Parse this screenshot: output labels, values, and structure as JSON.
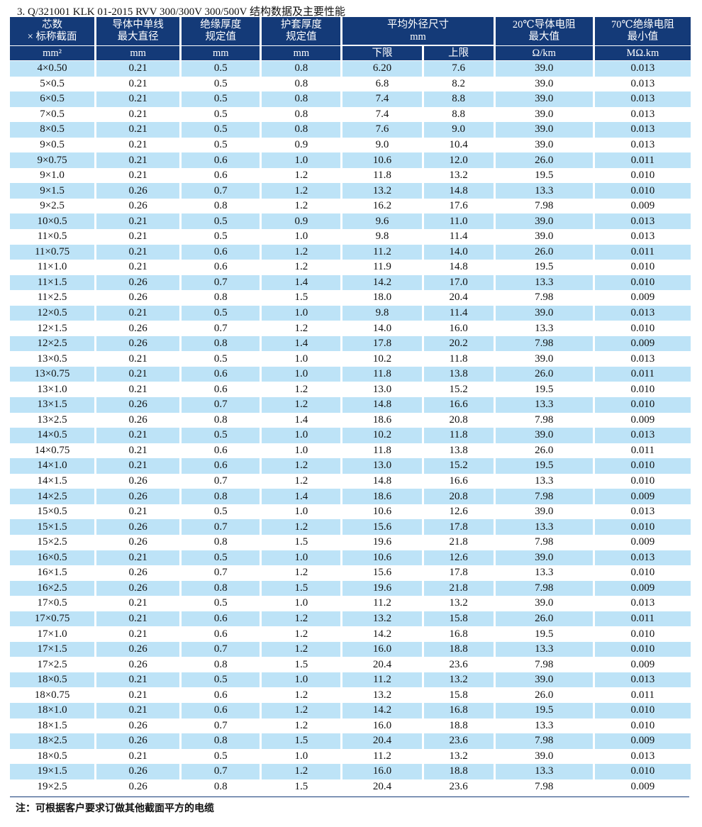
{
  "title": "3. Q/321001 KLK 01-2015 RVV 300/300V 300/500V 结构数据及主要性能",
  "header": {
    "col1": [
      "芯数",
      "× 标称截面",
      "mm²"
    ],
    "col2": [
      "导体中单线",
      "最大直径",
      "mm"
    ],
    "col3": [
      "绝缘厚度",
      "规定值",
      "mm"
    ],
    "col4": [
      "护套厚度",
      "规定值",
      "mm"
    ],
    "col5": [
      "平均外径尺寸",
      "mm"
    ],
    "col5_sub": [
      "下限",
      "上限"
    ],
    "col7": [
      "20℃导体电阻",
      "最大值",
      "Ω/km"
    ],
    "col8": [
      "70℃绝缘电阻",
      "最小值",
      "MΩ.km"
    ]
  },
  "colors": {
    "header_bg": "#143a78",
    "alt_row_bg": "#bde3f7"
  },
  "rows": [
    [
      "4×0.50",
      "0.21",
      "0.5",
      "0.8",
      "6.20",
      "7.6",
      "39.0",
      "0.013"
    ],
    [
      "5×0.5",
      "0.21",
      "0.5",
      "0.8",
      "6.8",
      "8.2",
      "39.0",
      "0.013"
    ],
    [
      "6×0.5",
      "0.21",
      "0.5",
      "0.8",
      "7.4",
      "8.8",
      "39.0",
      "0.013"
    ],
    [
      "7×0.5",
      "0.21",
      "0.5",
      "0.8",
      "7.4",
      "8.8",
      "39.0",
      "0.013"
    ],
    [
      "8×0.5",
      "0.21",
      "0.5",
      "0.8",
      "7.6",
      "9.0",
      "39.0",
      "0.013"
    ],
    [
      "9×0.5",
      "0.21",
      "0.5",
      "0.9",
      "9.0",
      "10.4",
      "39.0",
      "0.013"
    ],
    [
      "9×0.75",
      "0.21",
      "0.6",
      "1.0",
      "10.6",
      "12.0",
      "26.0",
      "0.011"
    ],
    [
      "9×1.0",
      "0.21",
      "0.6",
      "1.2",
      "11.8",
      "13.2",
      "19.5",
      "0.010"
    ],
    [
      "9×1.5",
      "0.26",
      "0.7",
      "1.2",
      "13.2",
      "14.8",
      "13.3",
      "0.010"
    ],
    [
      "9×2.5",
      "0.26",
      "0.8",
      "1.2",
      "16.2",
      "17.6",
      "7.98",
      "0.009"
    ],
    [
      "10×0.5",
      "0.21",
      "0.5",
      "0.9",
      "9.6",
      "11.0",
      "39.0",
      "0.013"
    ],
    [
      "11×0.5",
      "0.21",
      "0.5",
      "1.0",
      "9.8",
      "11.4",
      "39.0",
      "0.013"
    ],
    [
      "11×0.75",
      "0.21",
      "0.6",
      "1.2",
      "11.2",
      "14.0",
      "26.0",
      "0.011"
    ],
    [
      "11×1.0",
      "0.21",
      "0.6",
      "1.2",
      "11.9",
      "14.8",
      "19.5",
      "0.010"
    ],
    [
      "11×1.5",
      "0.26",
      "0.7",
      "1.4",
      "14.2",
      "17.0",
      "13.3",
      "0.010"
    ],
    [
      "11×2.5",
      "0.26",
      "0.8",
      "1.5",
      "18.0",
      "20.4",
      "7.98",
      "0.009"
    ],
    [
      "12×0.5",
      "0.21",
      "0.5",
      "1.0",
      "9.8",
      "11.4",
      "39.0",
      "0.013"
    ],
    [
      "12×1.5",
      "0.26",
      "0.7",
      "1.2",
      "14.0",
      "16.0",
      "13.3",
      "0.010"
    ],
    [
      "12×2.5",
      "0.26",
      "0.8",
      "1.4",
      "17.8",
      "20.2",
      "7.98",
      "0.009"
    ],
    [
      "13×0.5",
      "0.21",
      "0.5",
      "1.0",
      "10.2",
      "11.8",
      "39.0",
      "0.013"
    ],
    [
      "13×0.75",
      "0.21",
      "0.6",
      "1.0",
      "11.8",
      "13.8",
      "26.0",
      "0.011"
    ],
    [
      "13×1.0",
      "0.21",
      "0.6",
      "1.2",
      "13.0",
      "15.2",
      "19.5",
      "0.010"
    ],
    [
      "13×1.5",
      "0.26",
      "0.7",
      "1.2",
      "14.8",
      "16.6",
      "13.3",
      "0.010"
    ],
    [
      "13×2.5",
      "0.26",
      "0.8",
      "1.4",
      "18.6",
      "20.8",
      "7.98",
      "0.009"
    ],
    [
      "14×0.5",
      "0.21",
      "0.5",
      "1.0",
      "10.2",
      "11.8",
      "39.0",
      "0.013"
    ],
    [
      "14×0.75",
      "0.21",
      "0.6",
      "1.0",
      "11.8",
      "13.8",
      "26.0",
      "0.011"
    ],
    [
      "14×1.0",
      "0.21",
      "0.6",
      "1.2",
      "13.0",
      "15.2",
      "19.5",
      "0.010"
    ],
    [
      "14×1.5",
      "0.26",
      "0.7",
      "1.2",
      "14.8",
      "16.6",
      "13.3",
      "0.010"
    ],
    [
      "14×2.5",
      "0.26",
      "0.8",
      "1.4",
      "18.6",
      "20.8",
      "7.98",
      "0.009"
    ],
    [
      "15×0.5",
      "0.21",
      "0.5",
      "1.0",
      "10.6",
      "12.6",
      "39.0",
      "0.013"
    ],
    [
      "15×1.5",
      "0.26",
      "0.7",
      "1.2",
      "15.6",
      "17.8",
      "13.3",
      "0.010"
    ],
    [
      "15×2.5",
      "0.26",
      "0.8",
      "1.5",
      "19.6",
      "21.8",
      "7.98",
      "0.009"
    ],
    [
      "16×0.5",
      "0.21",
      "0.5",
      "1.0",
      "10.6",
      "12.6",
      "39.0",
      "0.013"
    ],
    [
      "16×1.5",
      "0.26",
      "0.7",
      "1.2",
      "15.6",
      "17.8",
      "13.3",
      "0.010"
    ],
    [
      "16×2.5",
      "0.26",
      "0.8",
      "1.5",
      "19.6",
      "21.8",
      "7.98",
      "0.009"
    ],
    [
      "17×0.5",
      "0.21",
      "0.5",
      "1.0",
      "11.2",
      "13.2",
      "39.0",
      "0.013"
    ],
    [
      "17×0.75",
      "0.21",
      "0.6",
      "1.2",
      "13.2",
      "15.8",
      "26.0",
      "0.011"
    ],
    [
      "17×1.0",
      "0.21",
      "0.6",
      "1.2",
      "14.2",
      "16.8",
      "19.5",
      "0.010"
    ],
    [
      "17×1.5",
      "0.26",
      "0.7",
      "1.2",
      "16.0",
      "18.8",
      "13.3",
      "0.010"
    ],
    [
      "17×2.5",
      "0.26",
      "0.8",
      "1.5",
      "20.4",
      "23.6",
      "7.98",
      "0.009"
    ],
    [
      "18×0.5",
      "0.21",
      "0.5",
      "1.0",
      "11.2",
      "13.2",
      "39.0",
      "0.013"
    ],
    [
      "18×0.75",
      "0.21",
      "0.6",
      "1.2",
      "13.2",
      "15.8",
      "26.0",
      "0.011"
    ],
    [
      "18×1.0",
      "0.21",
      "0.6",
      "1.2",
      "14.2",
      "16.8",
      "19.5",
      "0.010"
    ],
    [
      "18×1.5",
      "0.26",
      "0.7",
      "1.2",
      "16.0",
      "18.8",
      "13.3",
      "0.010"
    ],
    [
      "18×2.5",
      "0.26",
      "0.8",
      "1.5",
      "20.4",
      "23.6",
      "7.98",
      "0.009"
    ],
    [
      "18×0.5",
      "0.21",
      "0.5",
      "1.0",
      "11.2",
      "13.2",
      "39.0",
      "0.013"
    ],
    [
      "19×1.5",
      "0.26",
      "0.7",
      "1.2",
      "16.0",
      "18.8",
      "13.3",
      "0.010"
    ],
    [
      "19×2.5",
      "0.26",
      "0.8",
      "1.5",
      "20.4",
      "23.6",
      "7.98",
      "0.009"
    ]
  ],
  "note": "注：可根据客户要求订做其他截面平方的电缆"
}
